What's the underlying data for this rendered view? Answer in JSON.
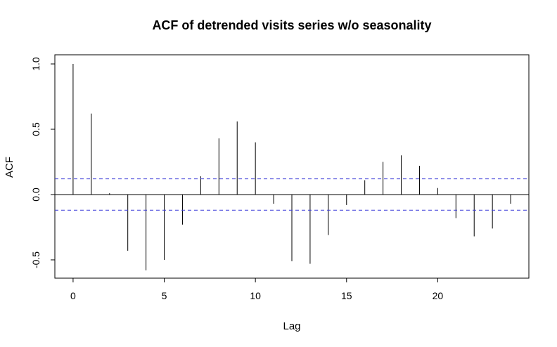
{
  "chart_data": {
    "type": "bar",
    "title": "ACF of detrended visits series w/o seasonality",
    "xlabel": "Lag",
    "ylabel": "ACF",
    "x": [
      0,
      1,
      2,
      3,
      4,
      5,
      6,
      7,
      8,
      9,
      10,
      11,
      12,
      13,
      14,
      15,
      16,
      17,
      18,
      19,
      20,
      21,
      22,
      23,
      24
    ],
    "values": [
      1.0,
      0.62,
      0.01,
      -0.43,
      -0.58,
      -0.5,
      -0.23,
      0.14,
      0.43,
      0.56,
      0.4,
      -0.07,
      -0.51,
      -0.53,
      -0.31,
      -0.08,
      0.11,
      0.25,
      0.3,
      0.22,
      0.05,
      -0.18,
      -0.32,
      -0.26,
      -0.07
    ],
    "confidence_bound": 0.12,
    "xlim": [
      -1.0,
      25.0
    ],
    "ylim": [
      -0.64,
      1.07
    ],
    "x_ticks": [
      0,
      5,
      10,
      15,
      20
    ],
    "x_tick_labels": [
      "0",
      "5",
      "10",
      "15",
      "20"
    ],
    "y_ticks": [
      -0.5,
      0.0,
      0.5,
      1.0
    ],
    "y_tick_labels": [
      "-0.5",
      "0.0",
      "0.5",
      "1.0"
    ],
    "grid": false,
    "bar_color": "#000000",
    "ci_color": "#3b3bd8"
  }
}
